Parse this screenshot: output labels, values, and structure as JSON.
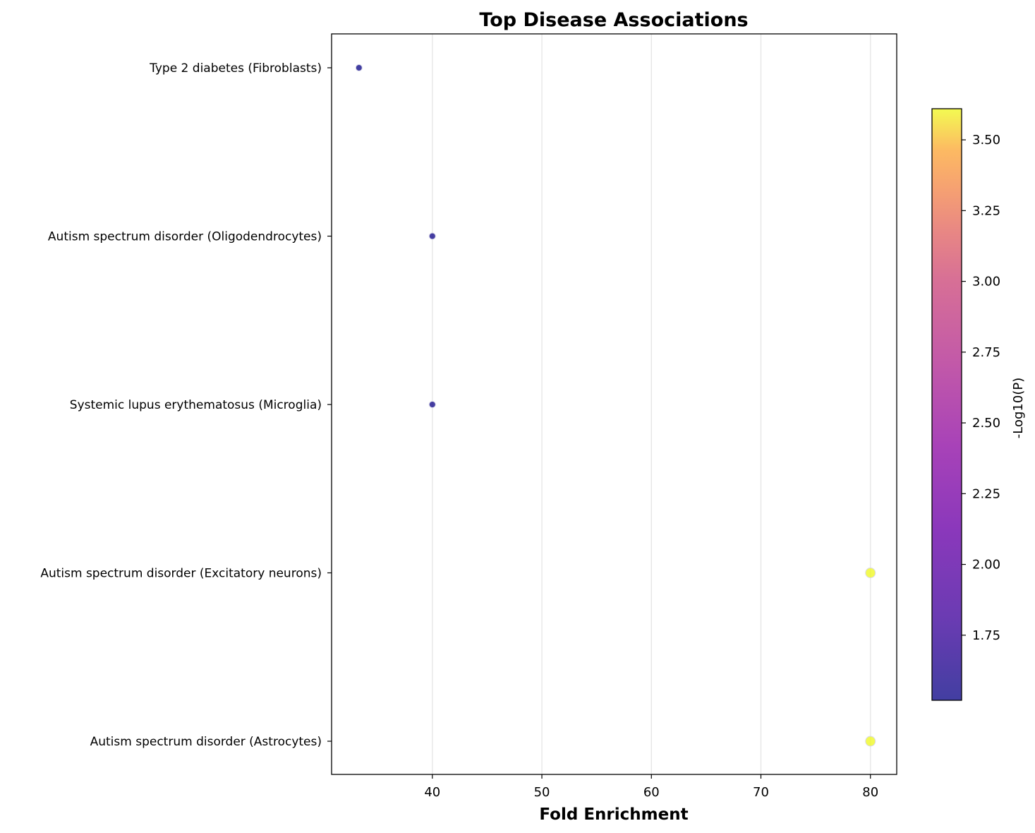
{
  "chart_data": {
    "type": "scatter",
    "title": "Top Disease Associations",
    "xlabel": "Fold Enrichment",
    "ylabel": "",
    "xlim": [
      30.8,
      82.4
    ],
    "xticks": [
      40,
      50,
      60,
      70,
      80
    ],
    "xtick_labels": [
      "40",
      "50",
      "60",
      "70",
      "80"
    ],
    "grid": "x",
    "categories": [
      "Type 2 diabetes (Fibroblasts)",
      "Autism spectrum disorder (Oligodendrocytes)",
      "Systemic lupus erythematosus (Microglia)",
      "Autism spectrum disorder (Excitatory neurons)",
      "Autism spectrum disorder (Astrocytes)"
    ],
    "points": [
      {
        "category": "Type 2 diabetes (Fibroblasts)",
        "x": 33.3,
        "neg_log10_p": 1.52
      },
      {
        "category": "Autism spectrum disorder (Oligodendrocytes)",
        "x": 40.0,
        "neg_log10_p": 1.55
      },
      {
        "category": "Systemic lupus erythematosus (Microglia)",
        "x": 40.0,
        "neg_log10_p": 1.55
      },
      {
        "category": "Autism spectrum disorder (Excitatory neurons)",
        "x": 80.0,
        "neg_log10_p": 3.61
      },
      {
        "category": "Autism spectrum disorder (Astrocytes)",
        "x": 80.0,
        "neg_log10_p": 3.61
      }
    ],
    "colorbar": {
      "label": "-Log10(P)",
      "colormap": "plasma",
      "range": [
        1.52,
        3.61
      ],
      "ticks": [
        1.75,
        2.0,
        2.25,
        2.5,
        2.75,
        3.0,
        3.25,
        3.5
      ],
      "tick_labels": [
        "1.75",
        "2.00",
        "2.25",
        "2.50",
        "2.75",
        "3.00",
        "3.25",
        "3.50"
      ],
      "placement": "right"
    },
    "colors": {
      "grid": "#e5e5e5",
      "axis": "#000000",
      "marker_edge": "#d8d8e8"
    }
  }
}
